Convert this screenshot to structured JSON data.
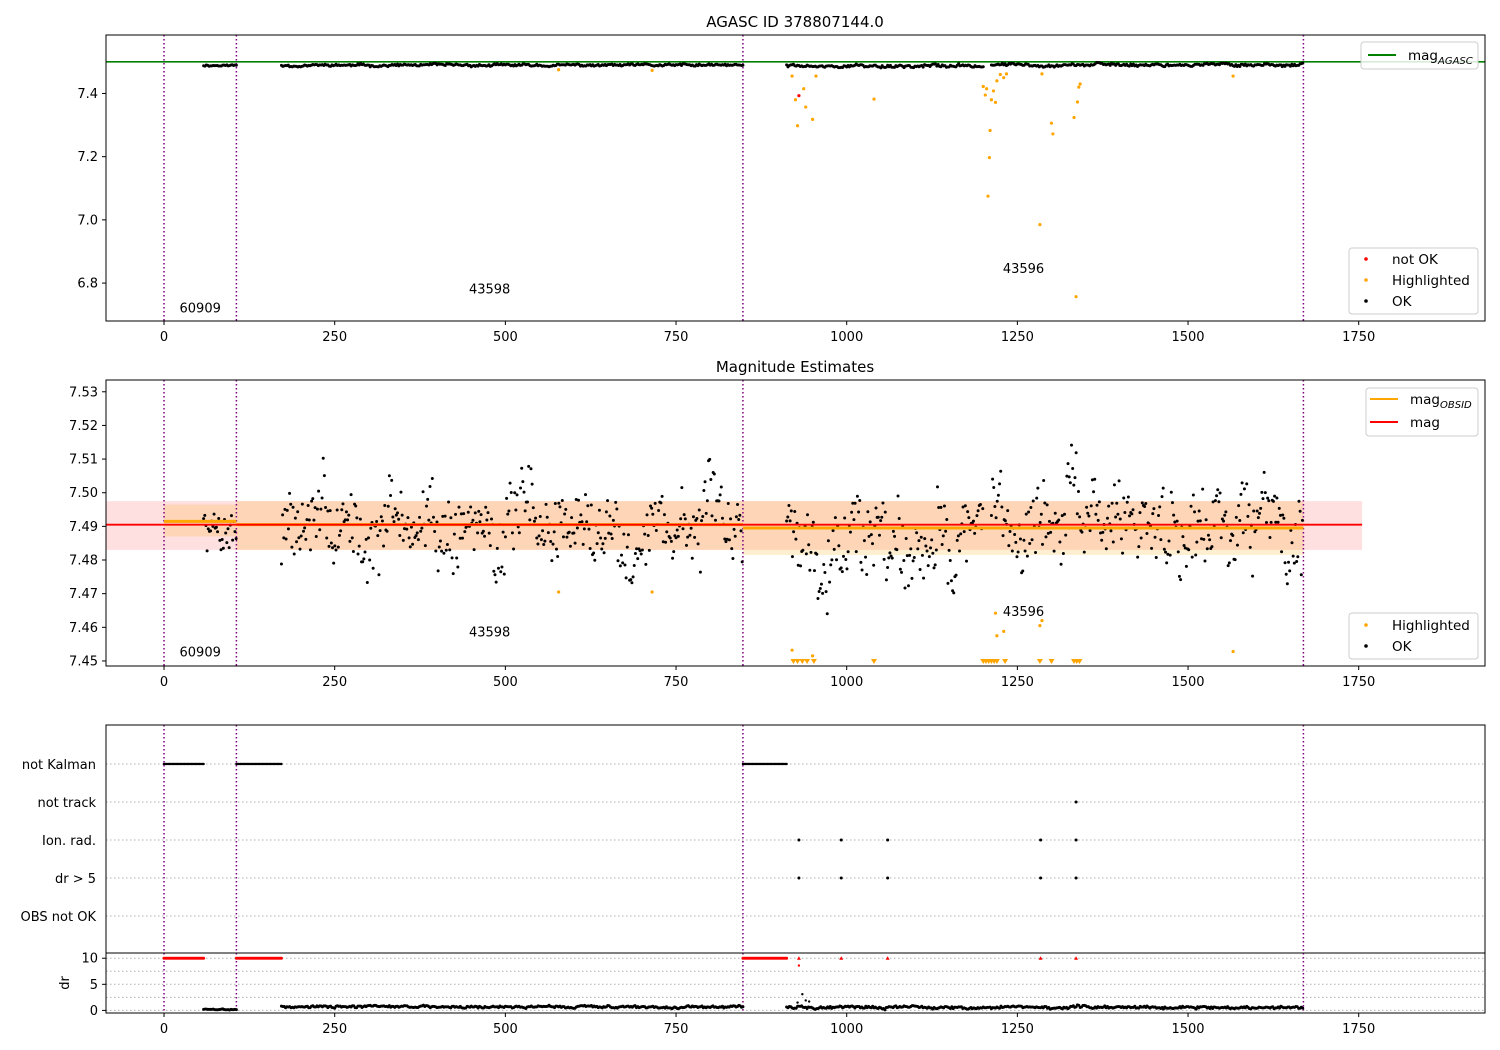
{
  "chart_data": [
    {
      "type": "scatter",
      "title": "AGASC ID 378807144.0",
      "xlim": [
        -85,
        1935
      ],
      "ylim": [
        6.68,
        7.585
      ],
      "xticks": [
        0,
        250,
        500,
        750,
        1000,
        1250,
        1500,
        1750
      ],
      "yticks": [
        6.8,
        7.0,
        7.2,
        7.4
      ],
      "ytick_labels": [
        "6.8",
        "7.0",
        "7.2",
        "7.4"
      ],
      "reference_line": {
        "name": "mag_AGASC",
        "y": 7.5,
        "color": "#008000"
      },
      "obsid_boundaries": [
        0,
        106,
        848,
        1669
      ],
      "obsid_labels": [
        {
          "text": "60909",
          "x": 53,
          "y": 6.72
        },
        {
          "text": "43598",
          "x": 477,
          "y": 6.78
        },
        {
          "text": "43596",
          "x": 1259,
          "y": 6.845
        }
      ],
      "legends": [
        {
          "position": "top-right",
          "entries": [
            {
              "label_main": "mag",
              "label_sub": "AGASC",
              "color": "#008000",
              "marker": "line"
            }
          ]
        },
        {
          "position": "bottom-right",
          "entries": [
            {
              "label_main": "not OK",
              "color": "#ff0000",
              "marker": "dot"
            },
            {
              "label_main": "Highlighted",
              "color": "#ffa500",
              "marker": "dot"
            },
            {
              "label_main": "OK",
              "color": "#000000",
              "marker": "dot"
            }
          ]
        }
      ],
      "series": [
        {
          "name": "not OK",
          "color": "#ff0000",
          "points": [
            [
              930,
              7.393
            ]
          ]
        },
        {
          "name": "Highlighted",
          "color": "#ffa500",
          "points": [
            [
              578,
              7.475
            ],
            [
              715,
              7.473
            ],
            [
              920,
              7.455
            ],
            [
              925,
              7.38
            ],
            [
              928,
              7.298
            ],
            [
              937,
              7.415
            ],
            [
              940,
              7.357
            ],
            [
              950,
              7.318
            ],
            [
              955,
              7.455
            ],
            [
              1040,
              7.382
            ],
            [
              1200,
              7.422
            ],
            [
              1203,
              7.395
            ],
            [
              1205,
              7.415
            ],
            [
              1207,
              7.075
            ],
            [
              1209,
              7.197
            ],
            [
              1210,
              7.283
            ],
            [
              1212,
              7.38
            ],
            [
              1215,
              7.408
            ],
            [
              1218,
              7.372
            ],
            [
              1220,
              7.44
            ],
            [
              1225,
              7.46
            ],
            [
              1230,
              7.45
            ],
            [
              1234,
              7.462
            ],
            [
              1283,
              6.985
            ],
            [
              1286,
              7.462
            ],
            [
              1300,
              7.306
            ],
            [
              1302,
              7.272
            ],
            [
              1333,
              7.324
            ],
            [
              1336,
              6.757
            ],
            [
              1338,
              7.373
            ],
            [
              1340,
              7.42
            ],
            [
              1342,
              7.43
            ],
            [
              1566,
              7.455
            ]
          ]
        },
        {
          "name": "OK",
          "color": "#000000",
          "segments": [
            {
              "x0": 58,
              "x1": 106,
              "center": 7.489,
              "amp": 0.004
            },
            {
              "x0": 172,
              "x1": 848,
              "center": 7.489,
              "amp": 0.006
            },
            {
              "x0": 912,
              "x1": 1200,
              "center": 7.487,
              "amp": 0.008
            },
            {
              "x0": 1212,
              "x1": 1669,
              "center": 7.491,
              "amp": 0.007
            }
          ]
        }
      ]
    },
    {
      "type": "scatter",
      "title": "Magnitude Estimates",
      "xlim": [
        -85,
        1935
      ],
      "ylim": [
        7.4485,
        7.5335
      ],
      "xticks": [
        0,
        250,
        500,
        750,
        1000,
        1250,
        1500,
        1750
      ],
      "yticks": [
        7.45,
        7.46,
        7.47,
        7.48,
        7.49,
        7.5,
        7.51,
        7.52,
        7.53
      ],
      "ytick_labels": [
        "7.45",
        "7.46",
        "7.47",
        "7.48",
        "7.49",
        "7.50",
        "7.51",
        "7.52",
        "7.53"
      ],
      "obsid_boundaries": [
        0,
        106,
        848,
        1669
      ],
      "obsid_labels": [
        {
          "text": "60909",
          "x": 53,
          "y": 7.4525
        },
        {
          "text": "43598",
          "x": 477,
          "y": 7.4585
        },
        {
          "text": "43596",
          "x": 1259,
          "y": 7.4645
        }
      ],
      "mag": {
        "name": "mag",
        "value": 7.4905,
        "band": [
          7.483,
          7.4975
        ],
        "x_range": [
          -85,
          1755
        ],
        "color": "#ff0000"
      },
      "mag_obsid": [
        {
          "x0": 0,
          "x1": 106,
          "value": 7.4915,
          "band": [
            7.487,
            7.4965
          ]
        },
        {
          "x0": 106,
          "x1": 848,
          "value": 7.4905,
          "band": [
            7.483,
            7.4975
          ]
        },
        {
          "x0": 848,
          "x1": 1669,
          "value": 7.4895,
          "band": [
            7.4815,
            7.4975
          ]
        }
      ],
      "legends": [
        {
          "position": "top-right",
          "entries": [
            {
              "label_main": "mag",
              "label_sub": "OBSID",
              "color": "#ffa500",
              "marker": "line"
            },
            {
              "label_main": "mag",
              "color": "#ff0000",
              "marker": "line"
            }
          ]
        },
        {
          "position": "bottom-right",
          "entries": [
            {
              "label_main": "Highlighted",
              "color": "#ffa500",
              "marker": "dot"
            },
            {
              "label_main": "OK",
              "color": "#000000",
              "marker": "dot"
            }
          ]
        }
      ],
      "series": [
        {
          "name": "Highlighted",
          "color": "#ffa500",
          "points": [
            [
              578,
              7.4705
            ],
            [
              715,
              7.4705
            ],
            [
              920,
              7.4532
            ],
            [
              950,
              7.4515
            ],
            [
              1218,
              7.4642
            ],
            [
              1220,
              7.4575
            ],
            [
              1230,
              7.4588
            ],
            [
              1283,
              7.4605
            ],
            [
              1286,
              7.462
            ],
            [
              1566,
              7.4528
            ]
          ]
        },
        {
          "name": "Highlighted (off-scale)",
          "color": "#ffa500",
          "marker": "triangle-down",
          "x": [
            922,
            928,
            935,
            942,
            952,
            1040,
            1200,
            1204,
            1208,
            1212,
            1216,
            1220,
            1232,
            1283,
            1300,
            1333,
            1337,
            1341
          ]
        },
        {
          "name": "OK",
          "color": "#000000",
          "segments": [
            {
              "x0": 58,
              "x1": 106,
              "center": 7.49,
              "amp": 0.01
            },
            {
              "x0": 172,
              "x1": 848,
              "center": 7.49,
              "amp": 0.018
            },
            {
              "x0": 912,
              "x1": 1200,
              "center": 7.488,
              "amp": 0.02
            },
            {
              "x0": 1212,
              "x1": 1669,
              "center": 7.492,
              "amp": 0.02
            }
          ]
        }
      ]
    },
    {
      "type": "scatter",
      "title": "",
      "xlim": [
        -85,
        1935
      ],
      "xticks": [
        0,
        250,
        500,
        750,
        1000,
        1250,
        1500,
        1750
      ],
      "obsid_boundaries": [
        0,
        106,
        848,
        1669
      ],
      "flag_rows": [
        "not Kalman",
        "not track",
        "Ion. rad.",
        "dr > 5",
        "OBS not OK"
      ],
      "flags": {
        "not Kalman": [
          [
            0,
            58
          ],
          [
            106,
            172
          ],
          [
            848,
            912
          ]
        ],
        "not track": [
          1336
        ],
        "Ion. rad.": [
          930,
          992,
          1060,
          1284,
          1336
        ],
        "dr > 5": [
          930,
          992,
          1060,
          1284,
          1336
        ],
        "OBS not OK": []
      },
      "dr": {
        "ylabel": "dr",
        "ylim": [
          -0.5,
          11
        ],
        "yticks": [
          0,
          5,
          10
        ],
        "ytick_labels": [
          "0",
          "5",
          "10"
        ],
        "grid_lines": [
          0,
          2.5,
          5,
          7.5,
          10
        ],
        "capped_value": 10,
        "capped_ranges": [
          [
            0,
            58
          ],
          [
            106,
            172
          ],
          [
            848,
            912
          ]
        ],
        "capped_points": [
          930,
          992,
          1060,
          1284,
          1336
        ],
        "scatter_points": [
          [
            930,
            8.6
          ],
          [
            935,
            3.1
          ],
          [
            940,
            1.9
          ],
          [
            928,
            1.5
          ],
          [
            945,
            1.7
          ]
        ],
        "ok_segments": [
          {
            "x0": 58,
            "x1": 106,
            "center": 0.2,
            "amp": 0.15
          },
          {
            "x0": 172,
            "x1": 848,
            "center": 0.7,
            "amp": 0.35
          },
          {
            "x0": 912,
            "x1": 1669,
            "center": 0.6,
            "amp": 0.4
          }
        ]
      }
    }
  ]
}
